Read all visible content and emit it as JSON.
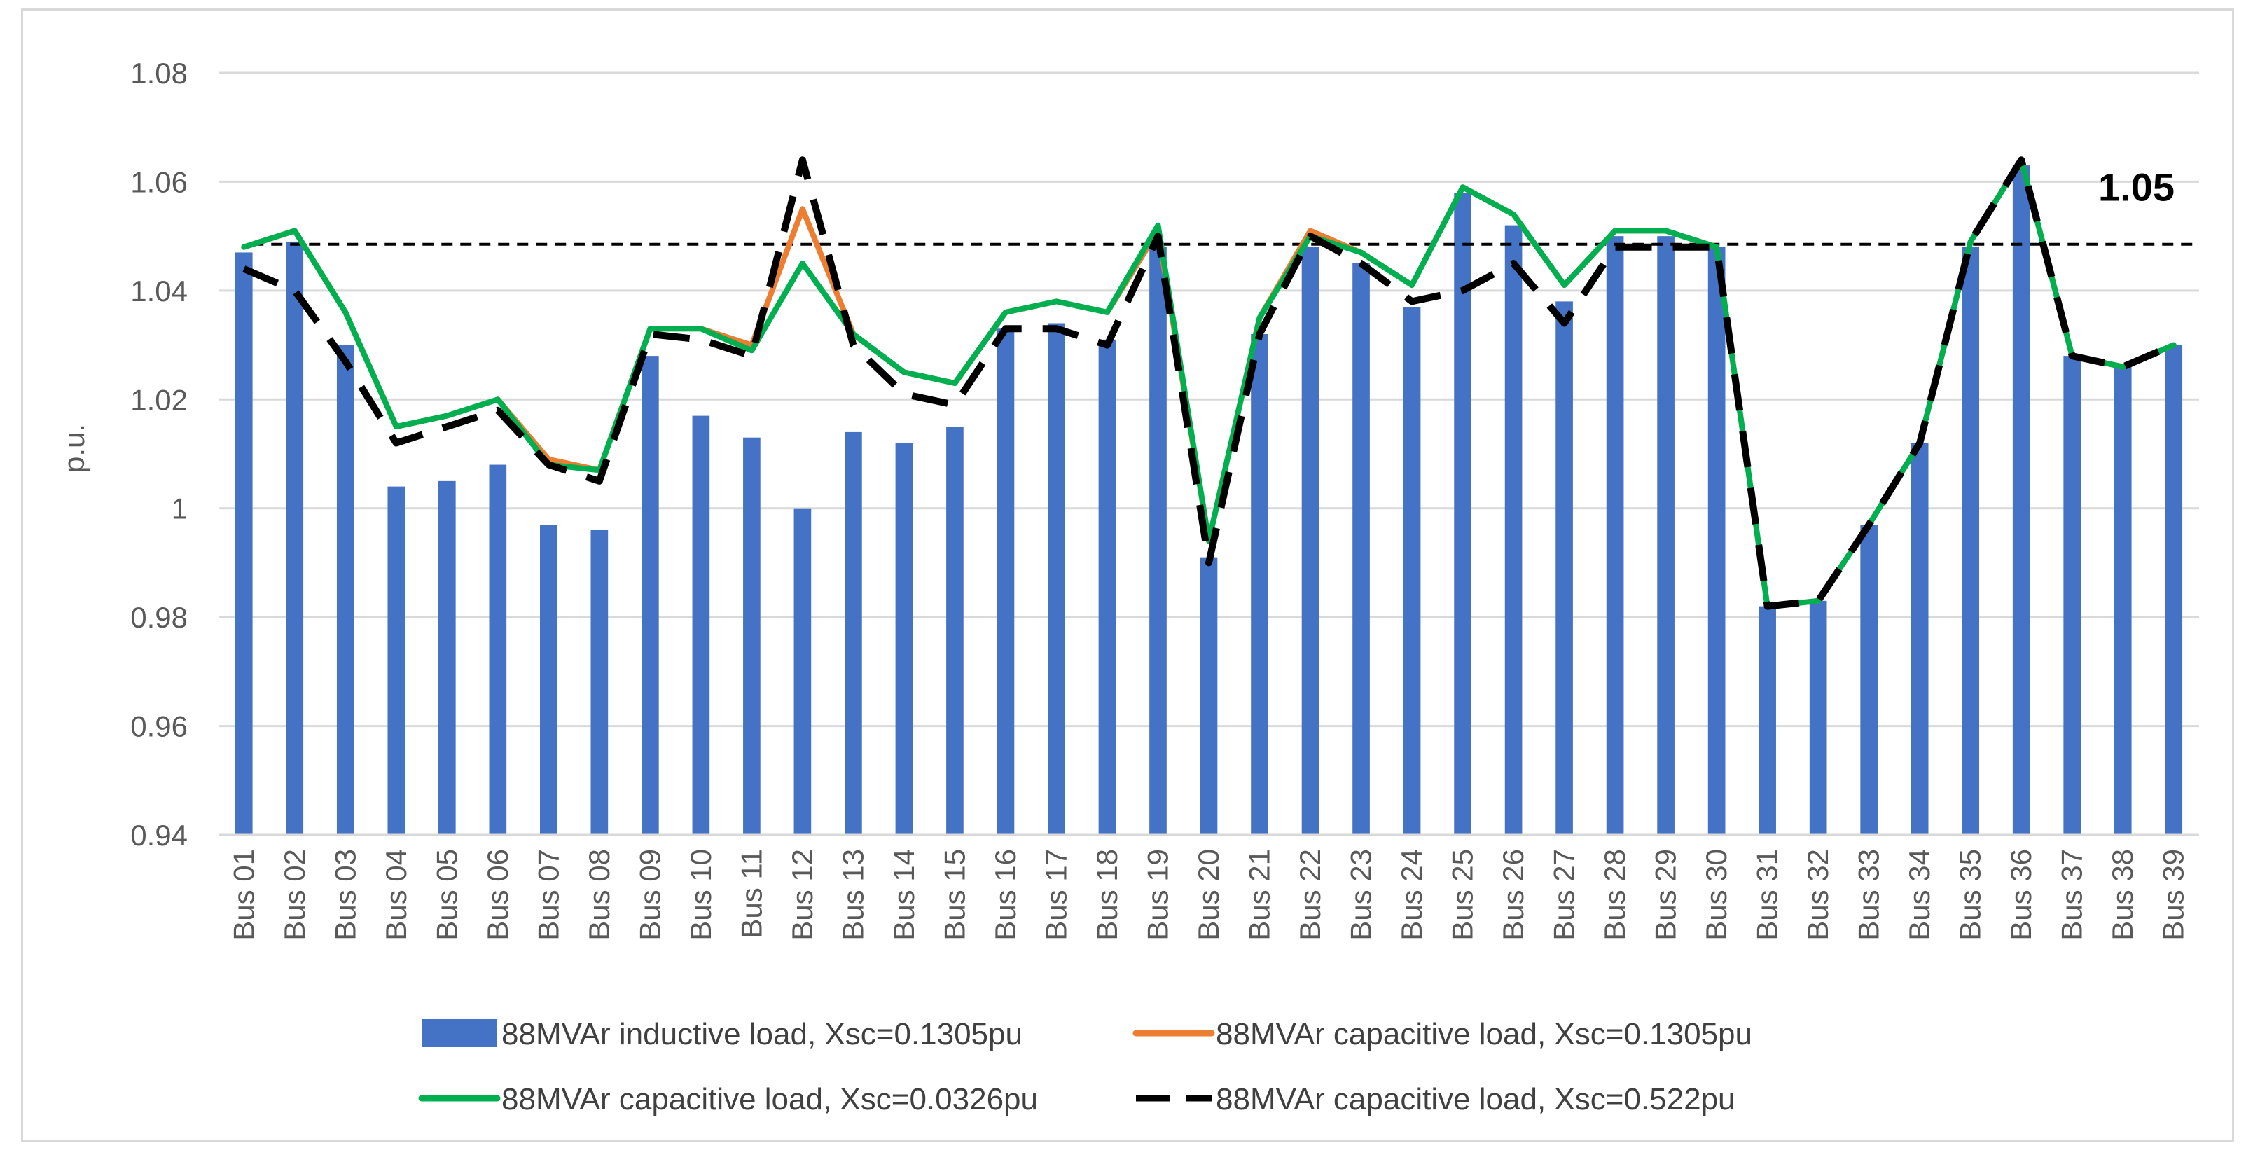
{
  "chart_data": {
    "type": "bar+line",
    "title": "",
    "xlabel": "",
    "ylabel": "p.u.",
    "ylim": [
      0.94,
      1.08
    ],
    "yticks": [
      0.94,
      0.96,
      0.98,
      1,
      1.02,
      1.04,
      1.06,
      1.08
    ],
    "ytick_labels": [
      "0.94",
      "0.96",
      "0.98",
      "1",
      "1.02",
      "1.04",
      "1.06",
      "1.08"
    ],
    "grid": true,
    "legend_position": "bottom",
    "categories": [
      "Bus 01",
      "Bus 02",
      "Bus 03",
      "Bus 04",
      "Bus 05",
      "Bus 06",
      "Bus 07",
      "Bus 08",
      "Bus 09",
      "Bus 10",
      "Bus 11",
      "Bus 12",
      "Bus 13",
      "Bus 14",
      "Bus 15",
      "Bus 16",
      "Bus 17",
      "Bus 18",
      "Bus 19",
      "Bus 20",
      "Bus 21",
      "Bus 22",
      "Bus 23",
      "Bus 24",
      "Bus 25",
      "Bus 26",
      "Bus 27",
      "Bus 28",
      "Bus 29",
      "Bus 30",
      "Bus 31",
      "Bus 32",
      "Bus 33",
      "Bus 34",
      "Bus 35",
      "Bus 36",
      "Bus 37",
      "Bus 38",
      "Bus 39"
    ],
    "reference_line": {
      "value": 1.0485,
      "label": "1.05",
      "color": "#000000",
      "style": "dashed"
    },
    "series": [
      {
        "name": "88MVAr inductive load, Xsc=0.1305pu",
        "kind": "bar",
        "color": "#4472C4",
        "values": [
          1.047,
          1.049,
          1.03,
          1.004,
          1.005,
          1.008,
          0.997,
          0.996,
          1.028,
          1.017,
          1.013,
          1.0,
          1.014,
          1.012,
          1.015,
          1.033,
          1.034,
          1.031,
          1.048,
          0.991,
          1.032,
          1.048,
          1.045,
          1.037,
          1.058,
          1.052,
          1.038,
          1.05,
          1.05,
          1.048,
          0.982,
          0.983,
          0.997,
          1.012,
          1.048,
          1.063,
          1.028,
          1.026,
          1.03
        ]
      },
      {
        "name": "88MVAr capacitive load, Xsc=0.1305pu",
        "kind": "line",
        "color": "#ED7D31",
        "dash": "solid",
        "values": [
          1.048,
          1.051,
          1.036,
          1.015,
          1.017,
          1.02,
          1.009,
          1.007,
          1.033,
          1.033,
          1.03,
          1.055,
          1.032,
          1.025,
          1.023,
          1.036,
          1.038,
          1.036,
          1.051,
          0.994,
          1.035,
          1.051,
          1.047,
          1.041,
          1.059,
          1.054,
          1.041,
          1.051,
          1.051,
          1.048,
          0.982,
          0.983,
          0.997,
          1.012,
          1.049,
          1.064,
          1.028,
          1.026,
          1.03
        ]
      },
      {
        "name": "88MVAr capacitive load, Xsc=0.0326pu",
        "kind": "line",
        "color": "#00B050",
        "dash": "solid",
        "values": [
          1.048,
          1.051,
          1.036,
          1.015,
          1.017,
          1.02,
          1.008,
          1.007,
          1.033,
          1.033,
          1.029,
          1.045,
          1.032,
          1.025,
          1.023,
          1.036,
          1.038,
          1.036,
          1.052,
          0.994,
          1.035,
          1.05,
          1.047,
          1.041,
          1.059,
          1.054,
          1.041,
          1.051,
          1.051,
          1.048,
          0.982,
          0.983,
          0.997,
          1.012,
          1.049,
          1.064,
          1.028,
          1.026,
          1.03
        ]
      },
      {
        "name": "88MVAr capacitive load, Xsc=0.522pu",
        "kind": "line",
        "color": "#000000",
        "dash": "dashed",
        "values": [
          1.044,
          1.04,
          1.027,
          1.012,
          1.015,
          1.018,
          1.008,
          1.005,
          1.032,
          1.031,
          1.028,
          1.064,
          1.03,
          1.021,
          1.019,
          1.033,
          1.033,
          1.03,
          1.05,
          0.99,
          1.032,
          1.05,
          1.045,
          1.038,
          1.04,
          1.045,
          1.034,
          1.048,
          1.048,
          1.048,
          0.982,
          0.983,
          0.997,
          1.012,
          1.049,
          1.064,
          1.028,
          1.026,
          1.03
        ]
      }
    ]
  }
}
